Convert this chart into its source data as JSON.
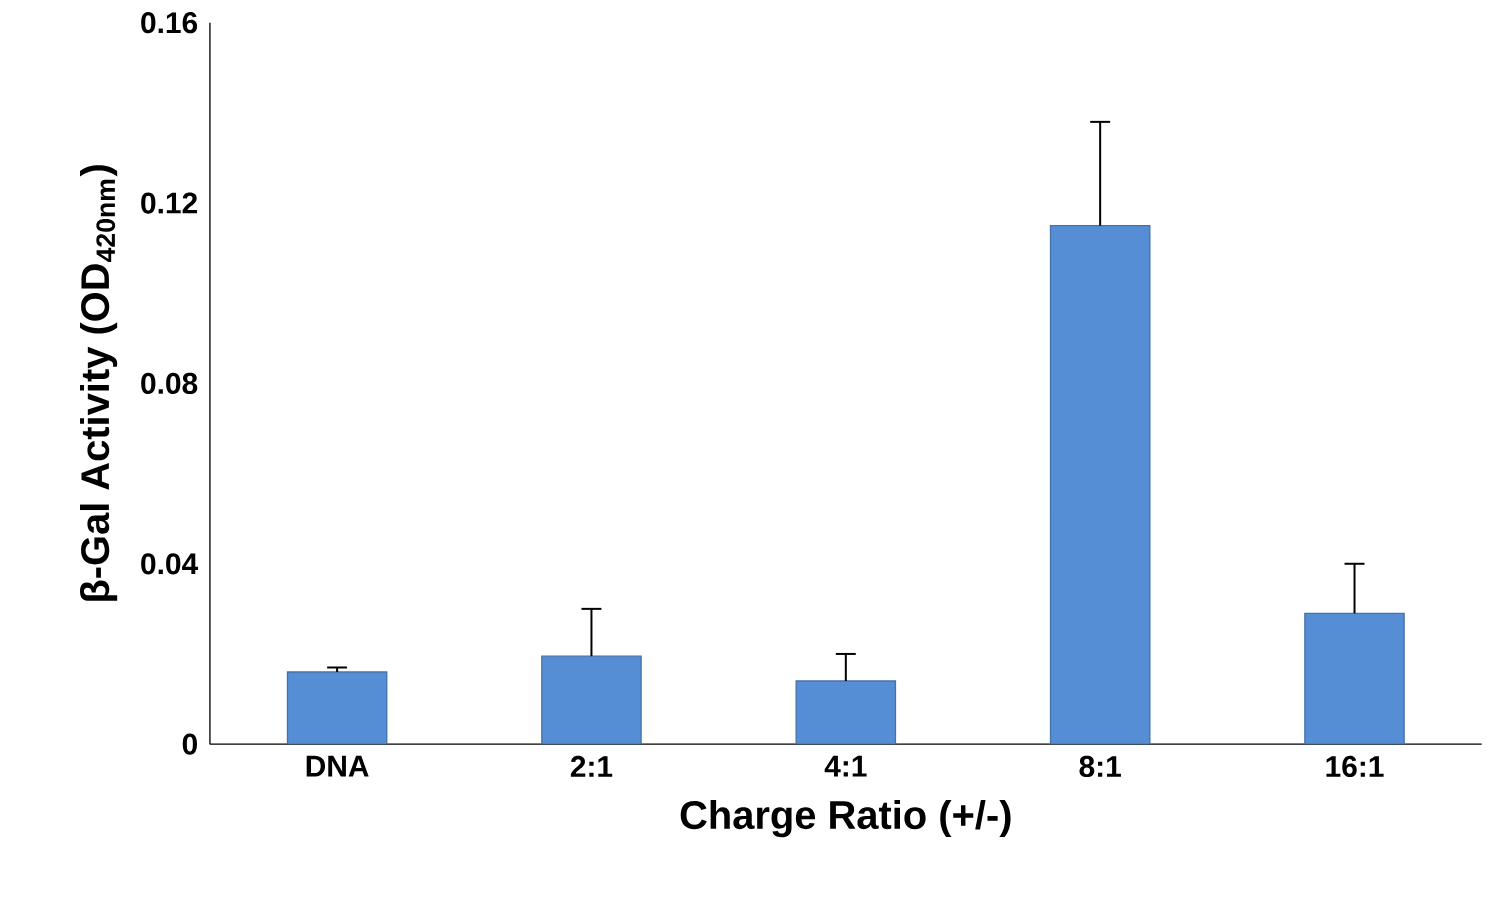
{
  "chart_data": {
    "type": "bar",
    "xlabel": "Charge Ratio (+/-)",
    "ylabel": "β-Gal Activity (OD$_{420nm}$)",
    "categories": [
      "DNA",
      "2:1",
      "4:1",
      "8:1",
      "16:1"
    ],
    "values": [
      0.016,
      0.0195,
      0.014,
      0.115,
      0.029
    ],
    "errors": [
      [
        0.016,
        0.017
      ],
      [
        0.0195,
        0.03
      ],
      [
        0.014,
        0.02
      ],
      [
        0.115,
        0.138
      ],
      [
        0.029,
        0.04
      ]
    ],
    "color": "#558ed5",
    "ylim": [
      0,
      0.16
    ],
    "yticks": [
      0,
      0.04,
      0.08,
      0.12,
      0.16
    ],
    "grid": false
  }
}
